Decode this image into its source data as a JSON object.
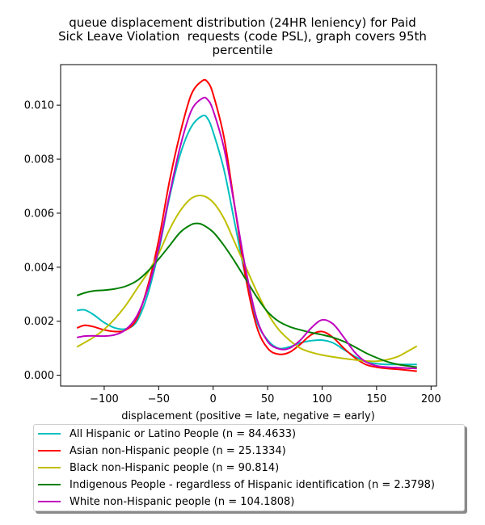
{
  "chart_data": {
    "type": "line",
    "title_lines": [
      "queue displacement distribution (24HR leniency) for Paid",
      "Sick Leave Violation  requests (code PSL), graph covers 95th",
      "percentile"
    ],
    "xlabel": "displacement (positive = late, negative = early)",
    "ylabel": "",
    "xlim": [
      -140,
      205
    ],
    "ylim": [
      -0.0004,
      0.0115
    ],
    "xticks": [
      -100,
      -50,
      0,
      50,
      100,
      150,
      200
    ],
    "xtick_labels": [
      "−100",
      "−50",
      "0",
      "50",
      "100",
      "150",
      "200"
    ],
    "yticks": [
      0.0,
      0.002,
      0.004,
      0.006,
      0.008,
      0.01
    ],
    "ytick_labels": [
      "0.000",
      "0.002",
      "0.004",
      "0.006",
      "0.008",
      "0.010"
    ],
    "legend_position": "below",
    "series": [
      {
        "name": "All Hispanic or Latino People (n = 84.4633)",
        "color": "#00bfbf",
        "points": [
          [
            -125,
            0.0024
          ],
          [
            -118,
            0.00242
          ],
          [
            -110,
            0.00225
          ],
          [
            -100,
            0.00195
          ],
          [
            -90,
            0.00175
          ],
          [
            -80,
            0.00172
          ],
          [
            -70,
            0.002
          ],
          [
            -60,
            0.003
          ],
          [
            -50,
            0.0046
          ],
          [
            -40,
            0.0066
          ],
          [
            -30,
            0.0082
          ],
          [
            -20,
            0.0092
          ],
          [
            -10,
            0.0096
          ],
          [
            -5,
            0.0095
          ],
          [
            0,
            0.009
          ],
          [
            10,
            0.0076
          ],
          [
            20,
            0.0056
          ],
          [
            30,
            0.0036
          ],
          [
            40,
            0.002
          ],
          [
            50,
            0.0013
          ],
          [
            60,
            0.001
          ],
          [
            70,
            0.00105
          ],
          [
            80,
            0.0012
          ],
          [
            90,
            0.00128
          ],
          [
            100,
            0.0013
          ],
          [
            110,
            0.0012
          ],
          [
            120,
            0.00095
          ],
          [
            130,
            0.0007
          ],
          [
            140,
            0.0005
          ],
          [
            150,
            0.00043
          ],
          [
            160,
            0.0004
          ],
          [
            170,
            0.0004
          ],
          [
            187,
            0.0004
          ]
        ]
      },
      {
        "name": "Asian non-Hispanic people (n = 25.1334)",
        "color": "#ff0000",
        "points": [
          [
            -125,
            0.00175
          ],
          [
            -118,
            0.00185
          ],
          [
            -110,
            0.0018
          ],
          [
            -100,
            0.00168
          ],
          [
            -90,
            0.00162
          ],
          [
            -80,
            0.00168
          ],
          [
            -70,
            0.0021
          ],
          [
            -60,
            0.0033
          ],
          [
            -50,
            0.005
          ],
          [
            -40,
            0.0072
          ],
          [
            -30,
            0.009
          ],
          [
            -20,
            0.0104
          ],
          [
            -10,
            0.0109
          ],
          [
            -5,
            0.01085
          ],
          [
            0,
            0.0104
          ],
          [
            10,
            0.0088
          ],
          [
            20,
            0.0062
          ],
          [
            30,
            0.0036
          ],
          [
            40,
            0.0018
          ],
          [
            50,
            0.001
          ],
          [
            60,
            0.00078
          ],
          [
            70,
            0.00085
          ],
          [
            80,
            0.00115
          ],
          [
            90,
            0.0015
          ],
          [
            100,
            0.00162
          ],
          [
            110,
            0.0014
          ],
          [
            120,
            0.001
          ],
          [
            130,
            0.00065
          ],
          [
            140,
            0.0004
          ],
          [
            150,
            0.0003
          ],
          [
            160,
            0.00025
          ],
          [
            170,
            0.00022
          ],
          [
            187,
            0.00015
          ]
        ]
      },
      {
        "name": "Black non-Hispanic people (n = 90.814)",
        "color": "#bfbf00",
        "points": [
          [
            -125,
            0.00105
          ],
          [
            -110,
            0.0014
          ],
          [
            -100,
            0.0017
          ],
          [
            -90,
            0.0021
          ],
          [
            -80,
            0.0026
          ],
          [
            -70,
            0.0032
          ],
          [
            -60,
            0.0038
          ],
          [
            -50,
            0.0045
          ],
          [
            -40,
            0.0054
          ],
          [
            -30,
            0.0061
          ],
          [
            -20,
            0.00655
          ],
          [
            -10,
            0.00665
          ],
          [
            0,
            0.0064
          ],
          [
            10,
            0.0058
          ],
          [
            20,
            0.0049
          ],
          [
            30,
            0.004
          ],
          [
            40,
            0.0031
          ],
          [
            50,
            0.0023
          ],
          [
            60,
            0.0017
          ],
          [
            70,
            0.0013
          ],
          [
            80,
            0.001
          ],
          [
            90,
            0.00085
          ],
          [
            100,
            0.00075
          ],
          [
            110,
            0.00068
          ],
          [
            120,
            0.00062
          ],
          [
            130,
            0.00057
          ],
          [
            140,
            0.00053
          ],
          [
            150,
            0.00052
          ],
          [
            160,
            0.00058
          ],
          [
            170,
            0.0007
          ],
          [
            180,
            0.00092
          ],
          [
            187,
            0.00108
          ]
        ]
      },
      {
        "name": "Indigenous People - regardless of Hispanic identification (n = 2.3798)",
        "color": "#008000",
        "points": [
          [
            -125,
            0.00295
          ],
          [
            -118,
            0.00305
          ],
          [
            -110,
            0.00312
          ],
          [
            -100,
            0.00315
          ],
          [
            -90,
            0.0032
          ],
          [
            -80,
            0.0033
          ],
          [
            -70,
            0.0035
          ],
          [
            -60,
            0.00385
          ],
          [
            -50,
            0.0043
          ],
          [
            -40,
            0.0048
          ],
          [
            -30,
            0.0053
          ],
          [
            -20,
            0.00558
          ],
          [
            -15,
            0.00562
          ],
          [
            -10,
            0.00558
          ],
          [
            0,
            0.0053
          ],
          [
            10,
            0.0048
          ],
          [
            20,
            0.0042
          ],
          [
            30,
            0.00355
          ],
          [
            40,
            0.0029
          ],
          [
            50,
            0.00235
          ],
          [
            60,
            0.002
          ],
          [
            70,
            0.0018
          ],
          [
            80,
            0.00168
          ],
          [
            90,
            0.00158
          ],
          [
            100,
            0.0015
          ],
          [
            110,
            0.0014
          ],
          [
            120,
            0.00125
          ],
          [
            130,
            0.00105
          ],
          [
            140,
            0.00083
          ],
          [
            150,
            0.00065
          ],
          [
            160,
            0.0005
          ],
          [
            170,
            0.0004
          ],
          [
            187,
            0.0003
          ]
        ]
      },
      {
        "name": "White non-Hispanic people (n = 104.1808)",
        "color": "#bf00bf",
        "points": [
          [
            -125,
            0.0014
          ],
          [
            -118,
            0.00145
          ],
          [
            -110,
            0.00146
          ],
          [
            -100,
            0.00145
          ],
          [
            -90,
            0.0015
          ],
          [
            -80,
            0.0017
          ],
          [
            -70,
            0.0022
          ],
          [
            -60,
            0.0032
          ],
          [
            -50,
            0.0047
          ],
          [
            -40,
            0.0067
          ],
          [
            -30,
            0.0085
          ],
          [
            -20,
            0.0098
          ],
          [
            -10,
            0.01025
          ],
          [
            -5,
            0.0102
          ],
          [
            0,
            0.0098
          ],
          [
            10,
            0.0084
          ],
          [
            20,
            0.0062
          ],
          [
            30,
            0.0039
          ],
          [
            40,
            0.0021
          ],
          [
            50,
            0.00125
          ],
          [
            60,
            0.00098
          ],
          [
            70,
            0.001
          ],
          [
            80,
            0.0013
          ],
          [
            90,
            0.00175
          ],
          [
            100,
            0.00205
          ],
          [
            110,
            0.0019
          ],
          [
            120,
            0.0014
          ],
          [
            130,
            0.00085
          ],
          [
            140,
            0.0005
          ],
          [
            150,
            0.00035
          ],
          [
            160,
            0.0003
          ],
          [
            170,
            0.00028
          ],
          [
            187,
            0.00025
          ]
        ]
      }
    ]
  }
}
